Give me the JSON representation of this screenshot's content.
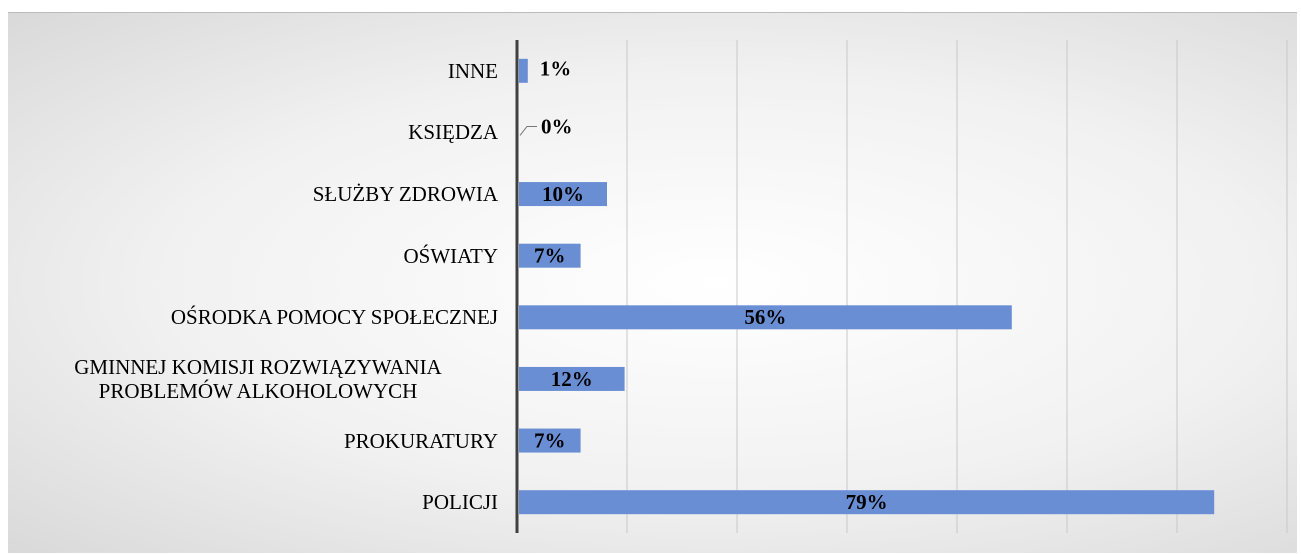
{
  "chart_data": {
    "type": "bar",
    "orientation": "horizontal",
    "categories": [
      "INNE",
      "KSIĘDZA",
      "SŁUŻBY ZDROWIA",
      "OŚWIATY",
      "OŚRODKA POMOCY SPOŁECZNEJ",
      "GMINNEJ KOMISJI ROZWIĄZYWANIA PROBLEMÓW ALKOHOLOWYCH",
      "PROKURATURY",
      "POLICJI"
    ],
    "values": [
      1,
      0,
      10,
      7,
      56,
      12,
      7,
      79
    ],
    "value_labels": [
      "1%",
      "0%",
      "10%",
      "7%",
      "56%",
      "12%",
      "7%",
      "79%"
    ],
    "color": "#6a8ed4",
    "xlim": [
      0,
      87.5
    ],
    "xticks": [
      0,
      12.5,
      25,
      37.5,
      50,
      62.5,
      75,
      87.5
    ],
    "grid": true
  }
}
